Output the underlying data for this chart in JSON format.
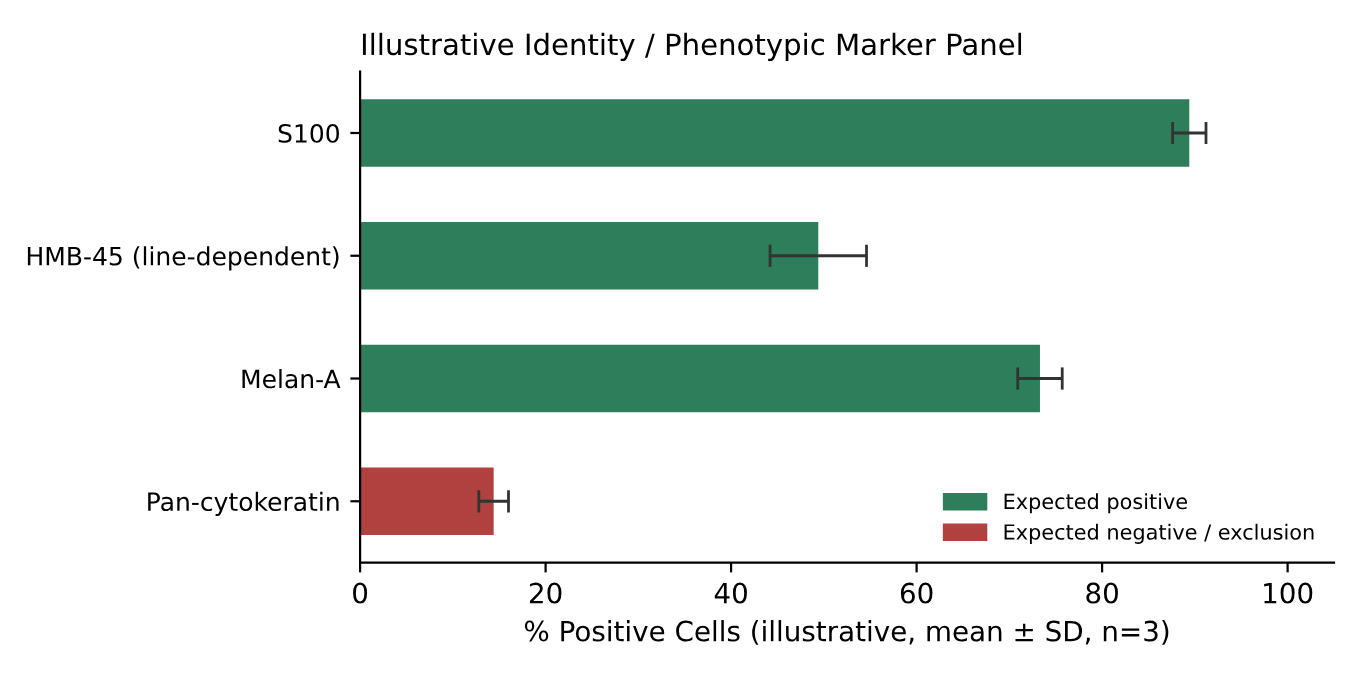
{
  "chart_data": {
    "type": "bar",
    "orientation": "horizontal",
    "title": "Illustrative Identity / Phenotypic Marker Panel",
    "xlabel": "% Positive Cells (illustrative, mean ± SD, n=3)",
    "categories": [
      "S100",
      "HMB-45 (line-dependent)",
      "Melan-A",
      "Pan-cytokeratin"
    ],
    "series": [
      {
        "name": "Expected positive",
        "color": "#2e7d5b",
        "values": [
          89.4,
          49.4,
          73.3,
          null
        ],
        "errors": [
          1.8,
          5.2,
          2.4,
          null
        ]
      },
      {
        "name": "Expected negative / exclusion",
        "color": "#b0413e",
        "values": [
          null,
          null,
          null,
          14.4
        ],
        "errors": [
          null,
          null,
          null,
          1.6
        ]
      }
    ],
    "xlim": [
      0,
      105
    ],
    "xticks": [
      0,
      20,
      40,
      60,
      80,
      100
    ],
    "grid": false,
    "legend": "bottom right"
  }
}
